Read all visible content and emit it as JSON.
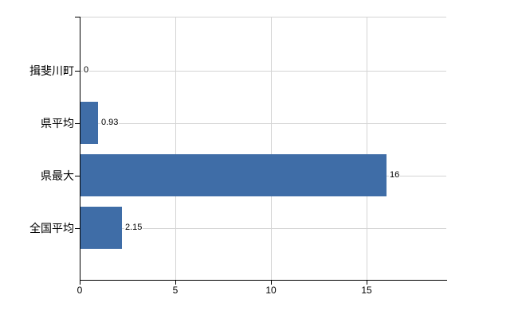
{
  "chart_data": {
    "type": "bar",
    "orientation": "horizontal",
    "title": "",
    "categories": [
      "揖斐川町",
      "県平均",
      "県最大",
      "全国平均"
    ],
    "values": [
      0,
      0.93,
      16,
      2.15
    ],
    "value_labels": [
      "0",
      "0.93",
      "16",
      "2.15"
    ],
    "x_ticks": [
      0,
      5,
      10,
      15
    ],
    "x_tick_labels": [
      "0",
      "5",
      "10",
      "15"
    ],
    "xlim": [
      0,
      19.1
    ],
    "grid": true,
    "legend": false,
    "colors": {
      "bar": "#3f6da7",
      "grid": "#d4d4d4",
      "axis": "#000000",
      "text": "#000000",
      "background": "#ffffff"
    }
  }
}
